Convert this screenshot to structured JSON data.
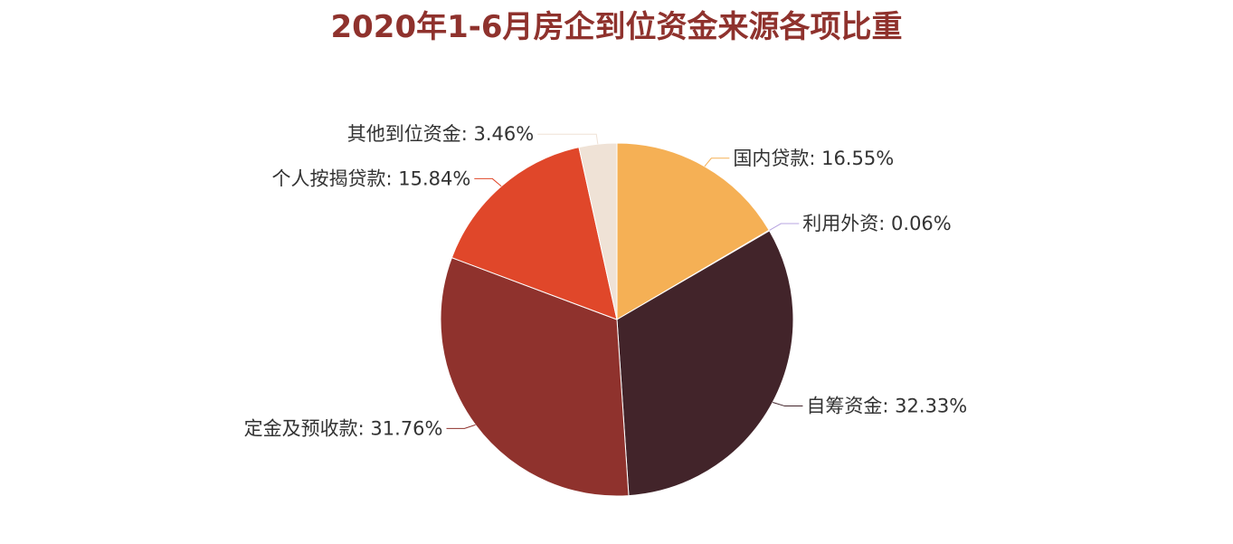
{
  "chart_data": {
    "type": "pie",
    "title": "2020年1-6月房企到位资金来源各项比重",
    "start": "top",
    "direction": "clockwise",
    "slices": [
      {
        "name": "国内贷款",
        "value": 16.55,
        "label": "国内贷款: 16.55%",
        "color": "#f5b055"
      },
      {
        "name": "利用外资",
        "value": 0.06,
        "label": "利用外资: 0.06%",
        "color": "#b7a4e0"
      },
      {
        "name": "自筹资金",
        "value": 32.33,
        "label": "自筹资金: 32.33%",
        "color": "#42242a"
      },
      {
        "name": "定金及预收款",
        "value": 31.76,
        "label": "定金及预收款: 31.76%",
        "color": "#8f322d"
      },
      {
        "name": "个人按揭贷款",
        "value": 15.84,
        "label": "个人按揭贷款: 15.84%",
        "color": "#e0472a"
      },
      {
        "name": "其他到位资金",
        "value": 3.46,
        "label": "其他到位资金: 3.46%",
        "color": "#efe2d6"
      }
    ]
  }
}
